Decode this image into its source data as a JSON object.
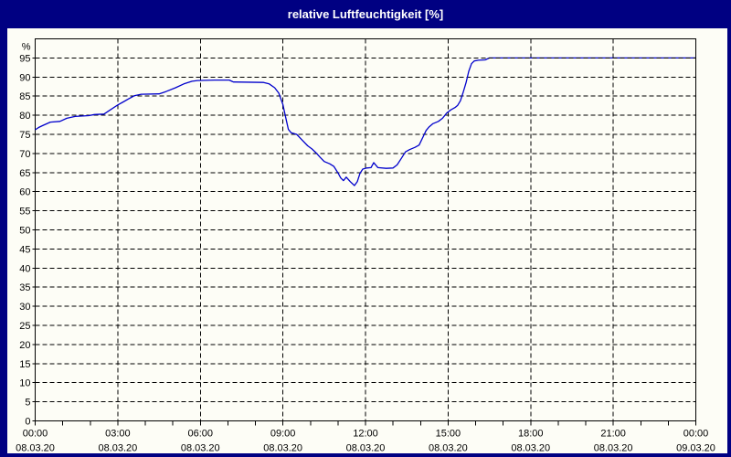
{
  "window": {
    "title": "relative Luftfeuchtigkeit [%]"
  },
  "colors": {
    "frame": "#000082",
    "titlebar_bg": "#000082",
    "title_text": "#ffffff",
    "panel_bg": "#fdfdf6",
    "line": "#0000cc",
    "grid": "#000000",
    "axis": "#000000",
    "label": "#000000"
  },
  "chart_data": {
    "type": "line",
    "title": "relative Luftfeuchtigkeit [%]",
    "ylabel": "%",
    "xlabel": "",
    "ylim": [
      0,
      100
    ],
    "xlim_hours": [
      0,
      24
    ],
    "grid": "dashed",
    "legend": "none",
    "y_ticks": [
      0,
      5,
      10,
      15,
      20,
      25,
      30,
      35,
      40,
      45,
      50,
      55,
      60,
      65,
      70,
      75,
      80,
      85,
      90,
      95
    ],
    "x_ticks": [
      {
        "hour": 0,
        "time": "00:00",
        "date": "08.03.20"
      },
      {
        "hour": 3,
        "time": "03:00",
        "date": "08.03.20"
      },
      {
        "hour": 6,
        "time": "06:00",
        "date": "08.03.20"
      },
      {
        "hour": 9,
        "time": "09:00",
        "date": "08.03.20"
      },
      {
        "hour": 12,
        "time": "12:00",
        "date": "08.03.20"
      },
      {
        "hour": 15,
        "time": "15:00",
        "date": "08.03.20"
      },
      {
        "hour": 18,
        "time": "18:00",
        "date": "08.03.20"
      },
      {
        "hour": 21,
        "time": "21:00",
        "date": "08.03.20"
      },
      {
        "hour": 24,
        "time": "00:00",
        "date": "09.03.20"
      }
    ],
    "minor_tick_every_hours": 1,
    "series": [
      {
        "name": "relative Luftfeuchtigkeit",
        "color": "#0000cc",
        "points": [
          [
            0.0,
            76.2
          ],
          [
            0.15,
            76.9
          ],
          [
            0.3,
            77.4
          ],
          [
            0.55,
            78.2
          ],
          [
            0.9,
            78.4
          ],
          [
            1.15,
            79.2
          ],
          [
            1.45,
            79.7
          ],
          [
            1.95,
            79.9
          ],
          [
            2.15,
            80.2
          ],
          [
            2.5,
            80.3
          ],
          [
            2.75,
            81.5
          ],
          [
            3.0,
            82.7
          ],
          [
            3.2,
            83.5
          ],
          [
            3.4,
            84.3
          ],
          [
            3.6,
            85.1
          ],
          [
            3.85,
            85.5
          ],
          [
            4.5,
            85.6
          ],
          [
            4.75,
            86.2
          ],
          [
            5.1,
            87.2
          ],
          [
            5.4,
            88.2
          ],
          [
            5.7,
            88.9
          ],
          [
            5.9,
            89.1
          ],
          [
            6.5,
            89.2
          ],
          [
            7.05,
            89.2
          ],
          [
            7.2,
            88.7
          ],
          [
            8.3,
            88.6
          ],
          [
            8.5,
            88.2
          ],
          [
            8.7,
            87.2
          ],
          [
            8.85,
            85.8
          ],
          [
            9.0,
            82.8
          ],
          [
            9.1,
            79.5
          ],
          [
            9.2,
            76.3
          ],
          [
            9.3,
            75.4
          ],
          [
            9.5,
            75.0
          ],
          [
            9.7,
            73.5
          ],
          [
            9.9,
            72.0
          ],
          [
            10.05,
            71.2
          ],
          [
            10.2,
            70.2
          ],
          [
            10.35,
            69.0
          ],
          [
            10.5,
            67.9
          ],
          [
            10.7,
            67.3
          ],
          [
            10.85,
            66.6
          ],
          [
            11.0,
            64.9
          ],
          [
            11.1,
            63.6
          ],
          [
            11.2,
            62.9
          ],
          [
            11.3,
            63.8
          ],
          [
            11.45,
            62.6
          ],
          [
            11.6,
            61.6
          ],
          [
            11.7,
            62.6
          ],
          [
            11.8,
            64.8
          ],
          [
            11.9,
            65.9
          ],
          [
            12.05,
            66.2
          ],
          [
            12.2,
            66.3
          ],
          [
            12.3,
            67.6
          ],
          [
            12.45,
            66.3
          ],
          [
            12.75,
            66.1
          ],
          [
            13.0,
            66.2
          ],
          [
            13.15,
            67.0
          ],
          [
            13.3,
            68.7
          ],
          [
            13.45,
            70.4
          ],
          [
            13.6,
            71.0
          ],
          [
            13.8,
            71.6
          ],
          [
            13.95,
            72.2
          ],
          [
            14.1,
            74.5
          ],
          [
            14.2,
            76.0
          ],
          [
            14.3,
            76.9
          ],
          [
            14.45,
            77.8
          ],
          [
            14.65,
            78.4
          ],
          [
            14.8,
            79.2
          ],
          [
            14.95,
            80.6
          ],
          [
            15.1,
            81.4
          ],
          [
            15.25,
            82.0
          ],
          [
            15.35,
            82.6
          ],
          [
            15.45,
            83.8
          ],
          [
            15.55,
            86.0
          ],
          [
            15.65,
            88.5
          ],
          [
            15.75,
            91.5
          ],
          [
            15.85,
            93.5
          ],
          [
            15.95,
            94.2
          ],
          [
            16.1,
            94.4
          ],
          [
            16.35,
            94.5
          ],
          [
            16.5,
            95.0
          ],
          [
            24.0,
            95.0
          ]
        ]
      }
    ]
  }
}
